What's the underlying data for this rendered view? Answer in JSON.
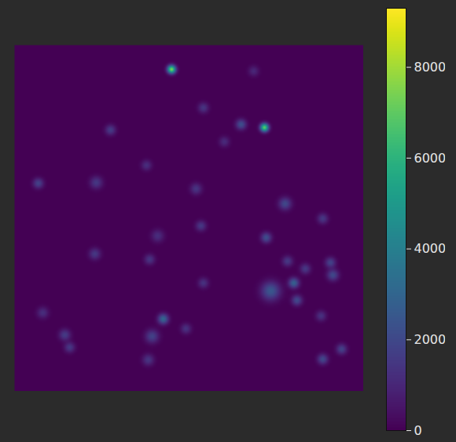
{
  "chart_data": {
    "type": "heatmap",
    "xlim": [
      0,
      100
    ],
    "ylim": [
      0,
      100
    ],
    "tick_labels": false,
    "sources": {
      "x": [
        45.0,
        71.6,
        42.6,
        73.4,
        80.0,
        64.9,
        77.5,
        72.1,
        80.9,
        91.2,
        90.5,
        88.3,
        93.7,
        39.4,
        14.4,
        15.8,
        38.3,
        6.8,
        23.4,
        27.5,
        23.0,
        53.4,
        52.0,
        54.1,
        83.3,
        88.3,
        38.7,
        41.0,
        68.5,
        54.1,
        49.1,
        8.1,
        87.8,
        78.2,
        37.8,
        60.1
      ],
      "y": [
        93.0,
        76.2,
        20.9,
        29.0,
        31.3,
        77.1,
        54.2,
        44.4,
        26.3,
        33.6,
        37.2,
        9.3,
        12.2,
        15.9,
        16.3,
        12.7,
        9.1,
        60.1,
        60.3,
        75.5,
        39.7,
        47.8,
        58.5,
        81.9,
        35.4,
        49.9,
        38.1,
        44.9,
        92.5,
        31.3,
        18.1,
        22.7,
        21.8,
        37.6,
        65.3,
        72.1
      ],
      "values": [
        7500,
        7000,
        3000,
        2500,
        2800,
        2200,
        2000,
        2200,
        2000,
        2000,
        1800,
        2000,
        1800,
        1800,
        1600,
        1500,
        1400,
        1800,
        1500,
        1600,
        1500,
        1500,
        1400,
        1400,
        1500,
        1500,
        1400,
        1200,
        1000,
        1300,
        1300,
        1200,
        1300,
        1500,
        1200,
        1100
      ],
      "sizes": [
        0.8,
        0.8,
        1.0,
        1.8,
        1.0,
        1.0,
        1.2,
        1.0,
        1.0,
        1.1,
        1.0,
        1.0,
        1.0,
        1.3,
        1.1,
        1.0,
        1.1,
        1.0,
        1.2,
        1.0,
        1.1,
        1.0,
        1.1,
        1.0,
        1.0,
        1.0,
        1.0,
        1.2,
        1.0,
        1.0,
        1.0,
        1.1,
        1.0,
        1.0,
        1.0,
        1.0
      ]
    },
    "colorbar": {
      "range": [
        0,
        9300
      ],
      "ticks": [
        0,
        2000,
        4000,
        6000,
        8000
      ]
    },
    "color": "viridis"
  }
}
